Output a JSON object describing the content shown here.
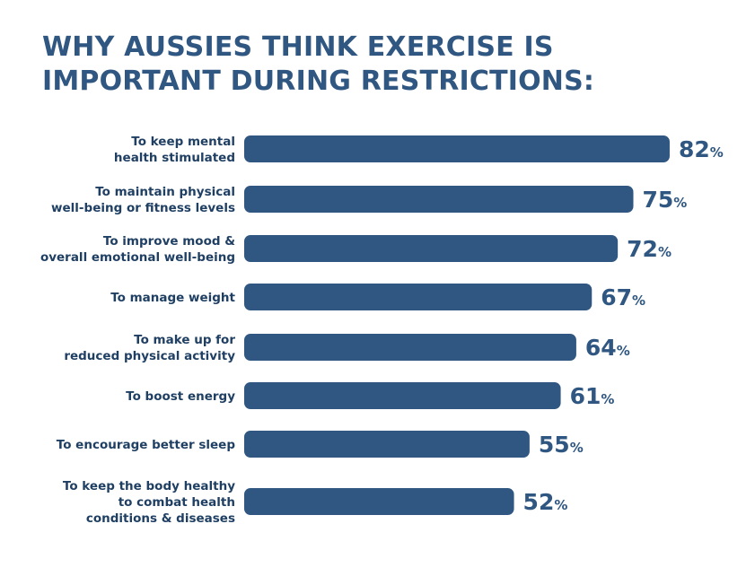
{
  "title_lines": [
    "WHY AUSSIES THINK EXERCISE IS",
    "IMPORTANT DURING RESTRICTIONS:"
  ],
  "colors": {
    "bar": "#2f5781",
    "text": "#1f3f63",
    "title": "#2f5781"
  },
  "chart_data": {
    "type": "bar",
    "orientation": "horizontal",
    "title": "WHY AUSSIES THINK EXERCISE IS IMPORTANT DURING RESTRICTIONS:",
    "categories": [
      [
        "To keep mental",
        "health stimulated"
      ],
      [
        "To maintain physical",
        "well-being or fitness levels"
      ],
      [
        "To improve mood &",
        "overall emotional well-being"
      ],
      [
        "To manage weight"
      ],
      [
        "To make up for",
        "reduced physical activity"
      ],
      [
        "To boost energy"
      ],
      [
        "To encourage better sleep"
      ],
      [
        "To keep the body healthy",
        "to combat health",
        "conditions & diseases"
      ]
    ],
    "values": [
      82,
      75,
      72,
      67,
      64,
      61,
      55,
      52
    ],
    "value_suffix": "%",
    "grid": false,
    "legend": "none"
  }
}
